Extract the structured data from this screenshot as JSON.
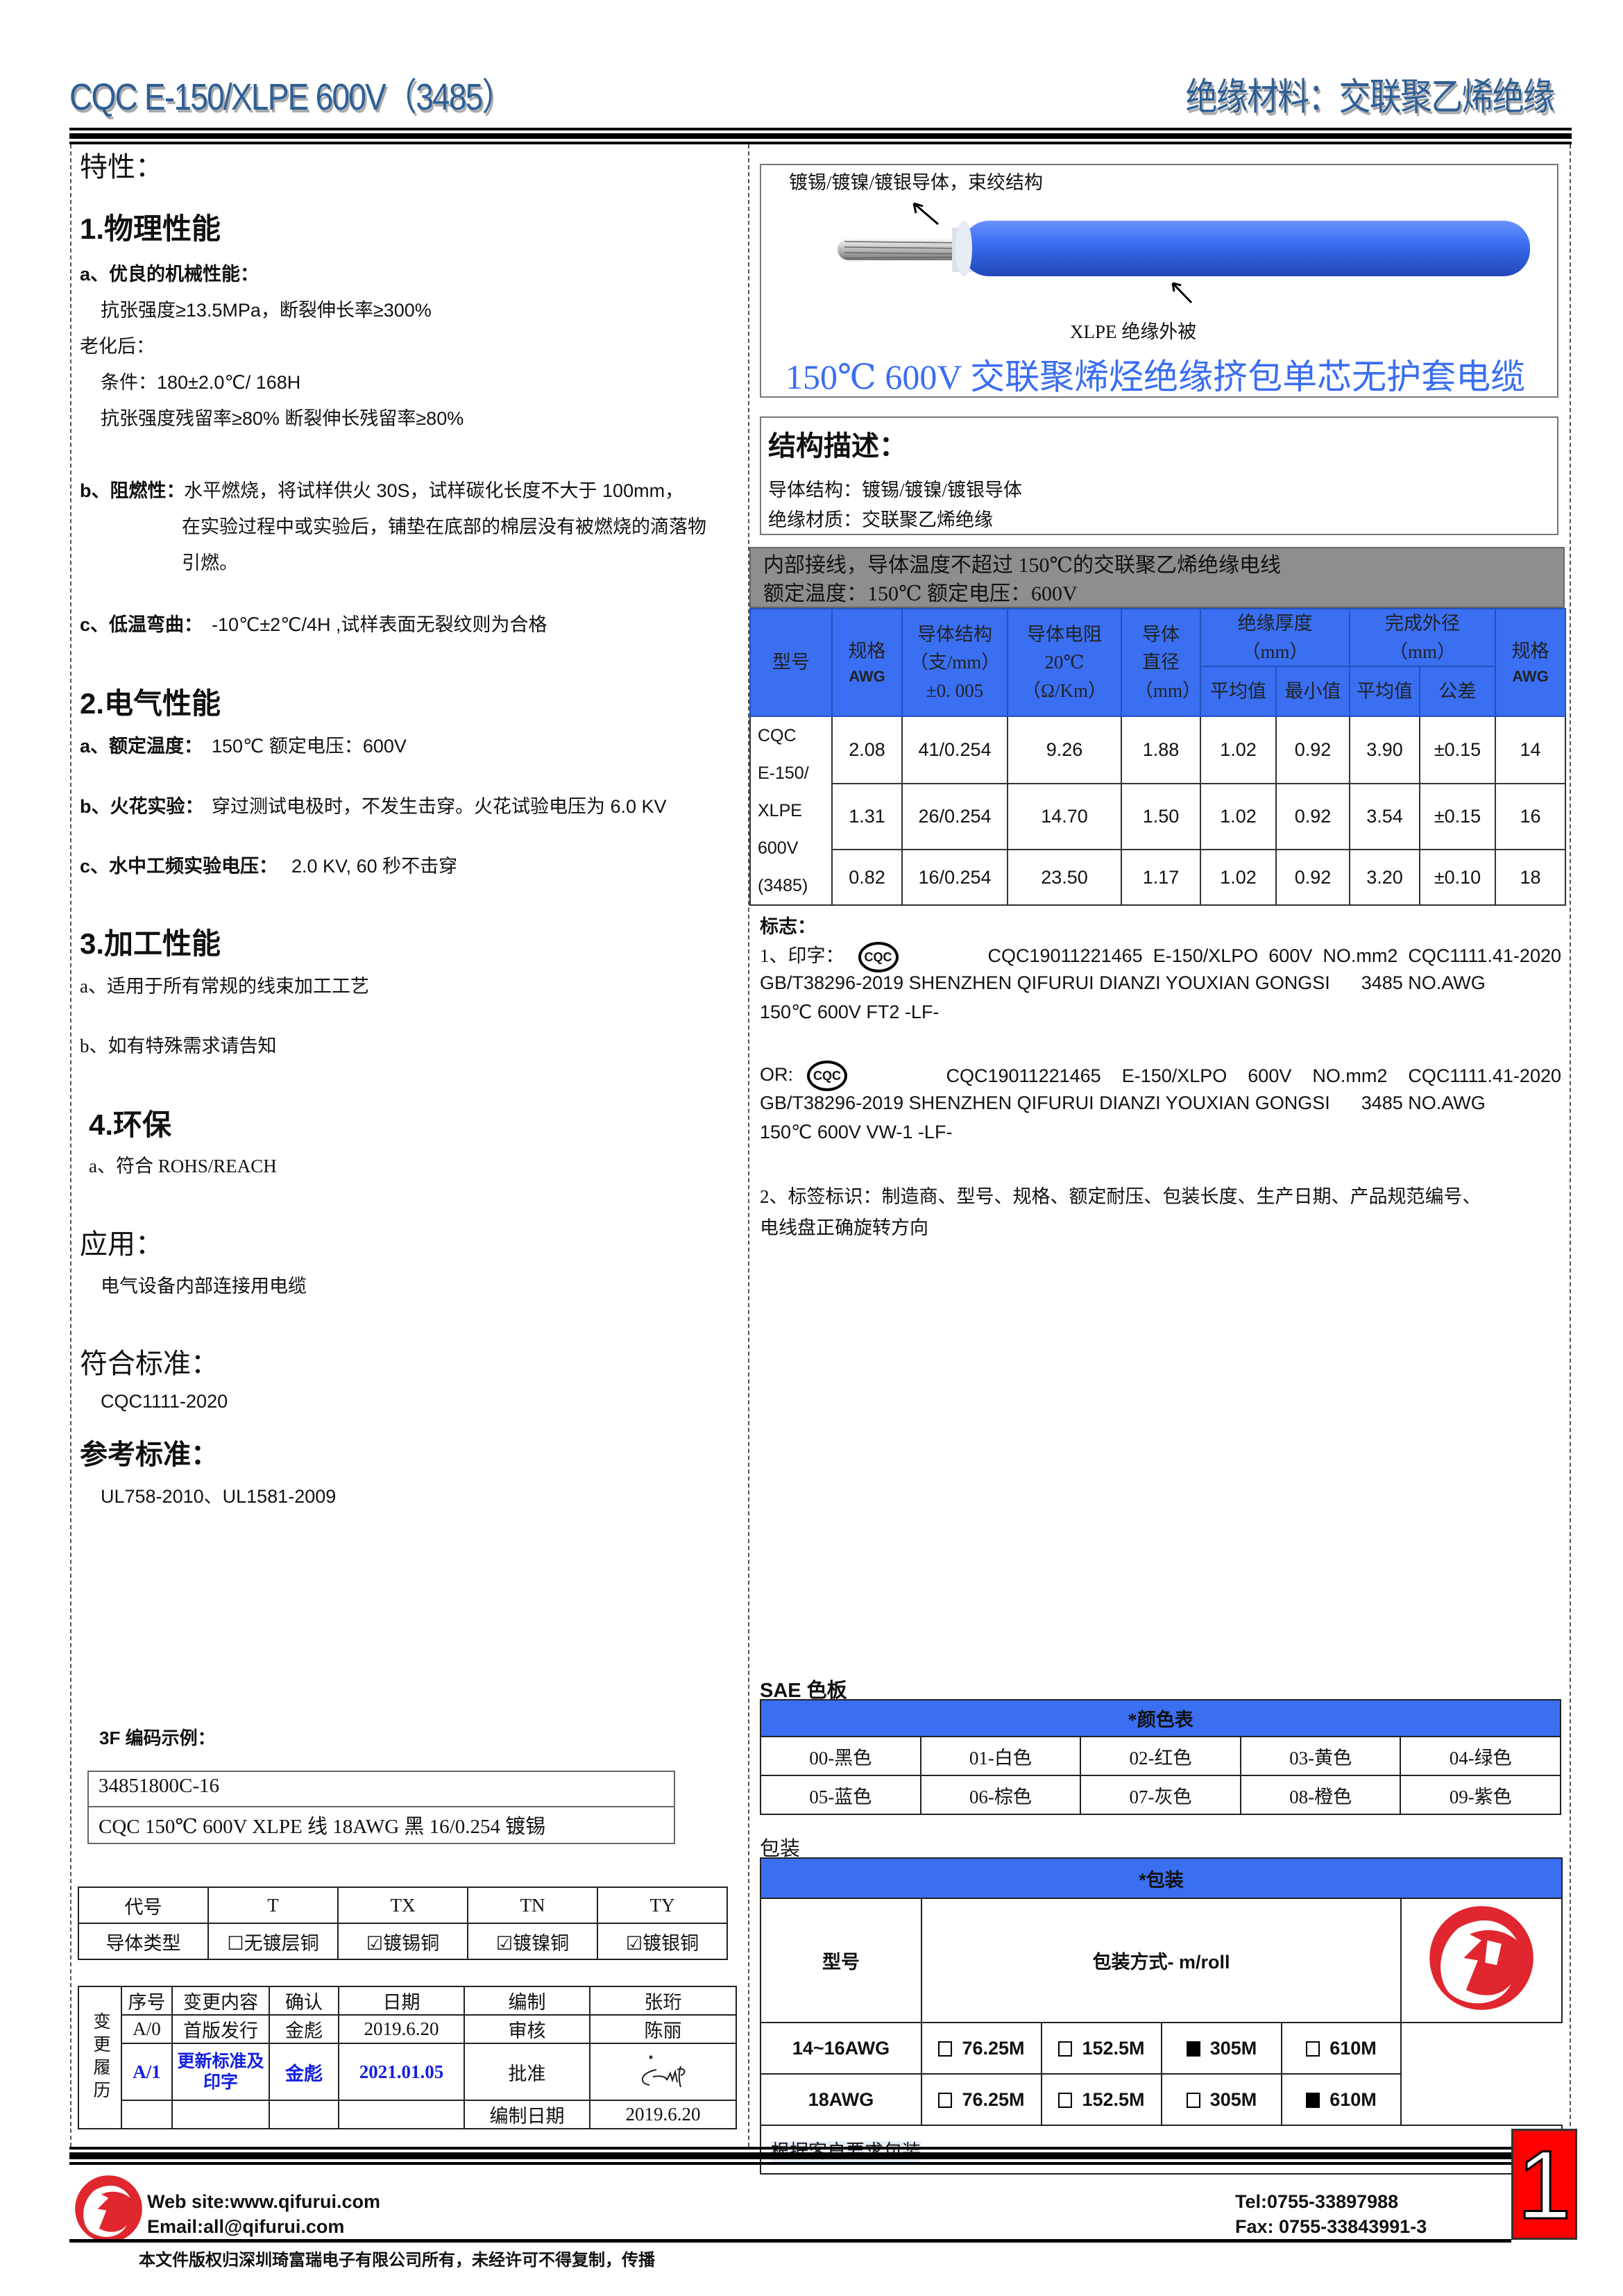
{
  "header": {
    "left_title": "CQC E-150/XLPE 600V（3485）",
    "right_title": "绝缘材料：交联聚乙烯绝缘"
  },
  "left": {
    "features_title": "特性：",
    "physical": {
      "title": "1.物理性能",
      "a_title": "a、优良的机械性能：",
      "a_lines": [
        "抗张强度≥13.5MPa，断裂伸长率≥300%",
        "老化后：",
        "条件：180±2.0℃/ 168H",
        "抗张强度残留率≥80%  断裂伸长残留率≥80%"
      ],
      "b_label": "b、阻燃性：",
      "b_lines": [
        "水平燃烧，将试样供火 30S，试样碳化长度不大于 100mm，",
        "在实验过程中或实验后，铺垫在底部的棉层没有被燃烧的滴落物",
        "引燃。"
      ],
      "c_label": "c、低温弯曲：",
      "c_text": "-10℃±2℃/4H ,试样表面无裂纹则为合格"
    },
    "electrical": {
      "title": "2.电气性能",
      "a_label": "a、额定温度：",
      "a_text": "150℃    额定电压：600V",
      "b_label": "b、火花实验：",
      "b_text": "穿过测试电极时，不发生击穿。火花试验电压为 6.0 KV",
      "c_label": "c、水中工频实验电压：",
      "c_text": "2.0 KV, 60 秒不击穿"
    },
    "processing": {
      "title": "3.加工性能",
      "a": "a、适用于所有常规的线束加工工艺",
      "b": "b、如有特殊需求请告知"
    },
    "env": {
      "title": "4.环保",
      "a": "a、符合 ROHS/REACH"
    },
    "application": {
      "title": "应用：",
      "text": "电气设备内部连接用电缆"
    },
    "standard": {
      "title": "符合标准：",
      "text": "CQC1111-2020"
    },
    "reference": {
      "title": "参考标准：",
      "text": "UL758-2010、UL1581-2009"
    },
    "code_example": {
      "title": "3F 编码示例：",
      "line1": "34851800C-16",
      "line2": "CQC 150℃  600V XLPE 线  18AWG  黑  16/0.254 镀锡"
    },
    "code_table": {
      "row1": [
        "代号",
        "T",
        "TX",
        "TN",
        "TY"
      ],
      "row2_label": "导体类型",
      "options": [
        {
          "label": "无镀层铜",
          "checked": false
        },
        {
          "label": "镀锡铜",
          "checked": true
        },
        {
          "label": "镀镍铜",
          "checked": true
        },
        {
          "label": "镀银铜",
          "checked": true
        }
      ]
    },
    "revision": {
      "side_label": "变更履历",
      "headers": [
        "序号",
        "变更内容",
        "确认",
        "日期",
        "编制",
        "张珩"
      ],
      "row_a0": [
        "A/0",
        "首版发行",
        "金彪",
        "2019.6.20",
        "审核",
        "陈丽"
      ],
      "row_a1": [
        "A/1",
        "更新标准及印字",
        "金彪",
        "2021.01.05",
        "批准"
      ],
      "signature": "signature",
      "last": [
        "编制日期",
        "2019.6.20"
      ]
    }
  },
  "right": {
    "diagram": {
      "conductor_label": "镀锡/镀镍/镀银导体，束绞结构",
      "insulation_label": "XLPE  绝缘外被",
      "product_title": "150℃  600V 交联聚烯烃绝缘挤包单芯无护套电缆",
      "insulation_color": "#3a6ef0"
    },
    "structure": {
      "title": "结构描述：",
      "conductor": "导体结构：镀锡/镀镍/镀银导体",
      "insulation": "绝缘材质：交联聚乙烯绝缘"
    },
    "summary": {
      "line1": "内部接线，导体温度不超过 150℃的交联聚乙烯绝缘电线",
      "line2": "额定温度：150℃  额定电压：600V"
    },
    "spec_table": {
      "headers": {
        "model": "型号",
        "size": "规格",
        "awg": "AWG",
        "structure": "导体结构（支/mm）±0. 005",
        "resistance": "导体电阻 20℃（Ω/Km）",
        "diameter": "导体直径（mm）",
        "insulation": "绝缘厚度（mm）",
        "outer": "完成外径（mm）",
        "avg": "平均值",
        "min": "最小值",
        "avg2": "平均值",
        "tol": "公差",
        "size2": "规格",
        "awg2": "AWG"
      },
      "model_lines": [
        "CQC",
        "E-150/",
        "XLPE",
        "600V",
        "(3485)"
      ],
      "rows": [
        [
          "2.08",
          "41/0.254",
          "9.26",
          "1.88",
          "1.02",
          "0.92",
          "3.90",
          "±0.15",
          "14"
        ],
        [
          "1.31",
          "26/0.254",
          "14.70",
          "1.50",
          "1.02",
          "0.92",
          "3.54",
          "±0.15",
          "16"
        ],
        [
          "0.82",
          "16/0.254",
          "23.50",
          "1.17",
          "1.02",
          "0.92",
          "3.20",
          "±0.10",
          "18"
        ]
      ]
    },
    "marking": {
      "title": "标志：",
      "p1_prefix": "1、印字：",
      "cqc_logo": "CQC",
      "p1_l1": "CQC19011221465  E-150/XLPO  600V  NO.mm2  CQC1111.41-2020",
      "p1_l2": "GB/T38296-2019 SHENZHEN QIFURUI DIANZI YOUXIAN GONGSI      3485 NO.AWG",
      "p1_l3": "150℃  600V FT2 -LF-",
      "p2_prefix": "OR:",
      "p2_l1": "CQC19011221465    E-150/XLPO    600V    NO.mm2    CQC1111.41-2020",
      "p2_l2": "GB/T38296-2019 SHENZHEN QIFURUI DIANZI YOUXIAN GONGSI      3485 NO.AWG",
      "p2_l3": "150℃  600V VW-1 -LF-",
      "p3_l1": "2、标签标识：制造商、型号、规格、额定耐压、包装长度、生产日期、产品规范编号、",
      "p3_l2": "电线盘正确旋转方向"
    },
    "sae": {
      "title": "SAE 色板",
      "header": "*颜色表",
      "colors": [
        "00-黑色",
        "01-白色",
        "02-红色",
        "03-黄色",
        "04-绿色",
        "05-蓝色",
        "06-棕色",
        "07-灰色",
        "08-橙色",
        "09-紫色"
      ]
    },
    "packaging": {
      "title": "包装",
      "header": "*包装",
      "col_model": "型号",
      "col_method": "包装方式- m/roll",
      "rows": [
        {
          "model": "14~16AWG",
          "options": [
            {
              "label": "76.25M",
              "checked": false
            },
            {
              "label": "152.5M",
              "checked": false
            },
            {
              "label": "305M",
              "checked": true
            },
            {
              "label": "610M",
              "checked": false
            }
          ]
        },
        {
          "model": "18AWG",
          "options": [
            {
              "label": "76.25M",
              "checked": false
            },
            {
              "label": "152.5M",
              "checked": false
            },
            {
              "label": "305M",
              "checked": false
            },
            {
              "label": "610M",
              "checked": true
            }
          ]
        }
      ],
      "note": "根据客户要求包装"
    }
  },
  "footer": {
    "website": "Web site:www.qifurui.com",
    "email": "Email:all@qifurui.com",
    "tel": "Tel:0755-33897988",
    "fax": "Fax: 0755-33843991-3",
    "copyright": "本文件版权归深圳琦富瑞电子有限公司所有，未经许可不得复制，传播",
    "page_number": "1",
    "brand_color": "#e0262e"
  }
}
